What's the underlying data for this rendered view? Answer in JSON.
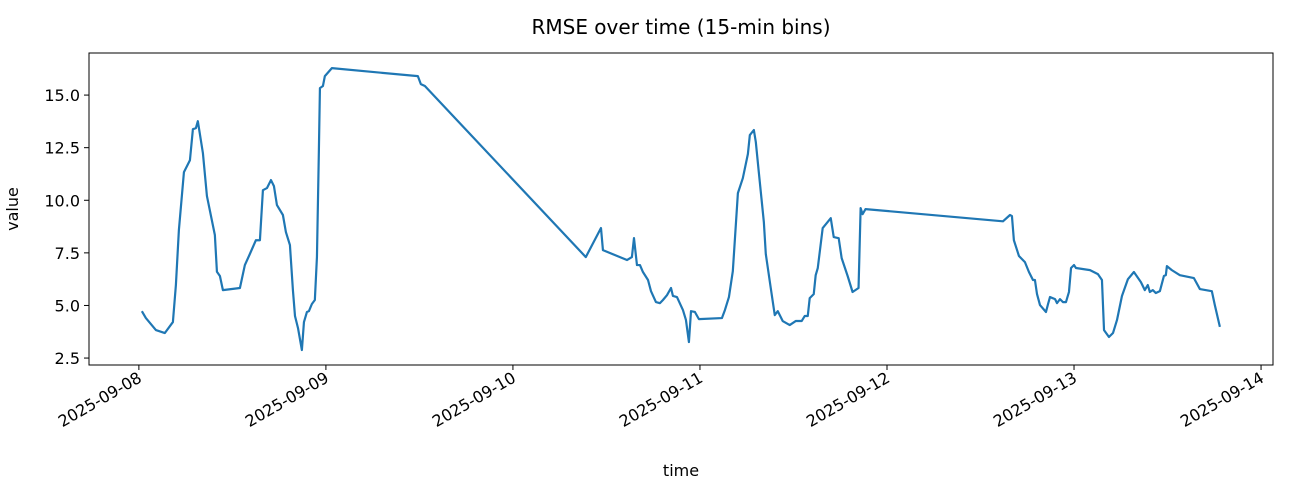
{
  "chart_data": {
    "type": "line",
    "title": "RMSE over time (15-min bins)",
    "x_label": "time",
    "y_label": "value",
    "color": "#1f77b4",
    "x": [
      "2025-09-08 00:23",
      "2025-09-08 00:54",
      "2025-09-08 02:11",
      "2025-09-08 03:20",
      "2025-09-08 04:22",
      "2025-09-08 04:45",
      "2025-09-08 05:08",
      "2025-09-08 05:47",
      "2025-09-08 06:33",
      "2025-09-08 06:56",
      "2025-09-08 07:19",
      "2025-09-08 07:34",
      "2025-09-08 08:13",
      "2025-09-08 08:44",
      "2025-09-08 09:45",
      "2025-09-08 10:01",
      "2025-09-08 10:24",
      "2025-09-08 10:47",
      "2025-09-08 12:58",
      "2025-09-08 13:36",
      "2025-09-08 14:14",
      "2025-09-08 15:01",
      "2025-09-08 15:32",
      "2025-09-08 15:55",
      "2025-09-08 16:26",
      "2025-09-08 16:57",
      "2025-09-08 17:20",
      "2025-09-08 17:43",
      "2025-09-08 18:29",
      "2025-09-08 18:52",
      "2025-09-08 19:23",
      "2025-09-08 19:46",
      "2025-09-08 20:02",
      "2025-09-08 20:25",
      "2025-09-08 20:55",
      "2025-09-08 21:11",
      "2025-09-08 21:34",
      "2025-09-08 21:49",
      "2025-09-08 22:12",
      "2025-09-08 22:35",
      "2025-09-08 22:51",
      "2025-09-08 23:06",
      "2025-09-08 23:14",
      "2025-09-08 23:37",
      "2025-09-08 23:52",
      "2025-09-09 00:46",
      "2025-09-09 11:48",
      "2025-09-09 12:11",
      "2025-09-09 12:42",
      "2025-09-10 09:21",
      "2025-09-10 11:18",
      "2025-09-10 11:33",
      "2025-09-10 14:38",
      "2025-09-10 15:16",
      "2025-09-10 15:32",
      "2025-09-10 15:55",
      "2025-09-10 16:18",
      "2025-09-10 16:41",
      "2025-09-10 17:20",
      "2025-09-10 17:43",
      "2025-09-10 18:21",
      "2025-09-10 18:52",
      "2025-09-10 19:15",
      "2025-09-10 19:46",
      "2025-09-10 20:17",
      "2025-09-10 20:32",
      "2025-09-10 21:03",
      "2025-09-10 21:49",
      "2025-09-10 22:12",
      "2025-09-10 22:35",
      "2025-09-10 22:51",
      "2025-09-10 23:21",
      "2025-09-10 23:52",
      "2025-09-11 02:49",
      "2025-09-11 03:12",
      "2025-09-11 03:43",
      "2025-09-11 04:13",
      "2025-09-11 04:52",
      "2025-09-11 05:30",
      "2025-09-11 06:09",
      "2025-09-11 06:24",
      "2025-09-11 06:55",
      "2025-09-11 07:10",
      "2025-09-11 07:33",
      "2025-09-11 08:12",
      "2025-09-11 08:27",
      "2025-09-11 09:05",
      "2025-09-11 09:36",
      "2025-09-11 09:59",
      "2025-09-11 10:37",
      "2025-09-11 11:31",
      "2025-09-11 12:17",
      "2025-09-11 13:03",
      "2025-09-11 13:27",
      "2025-09-11 13:50",
      "2025-09-11 14:05",
      "2025-09-11 14:36",
      "2025-09-11 14:51",
      "2025-09-11 15:07",
      "2025-09-11 15:45",
      "2025-09-11 16:47",
      "2025-09-11 17:10",
      "2025-09-11 17:48",
      "2025-09-11 18:11",
      "2025-09-11 18:57",
      "2025-09-11 19:35",
      "2025-09-11 20:21",
      "2025-09-11 20:37",
      "2025-09-11 20:52",
      "2025-09-11 21:15",
      "2025-09-12 14:53",
      "2025-09-12 15:47",
      "2025-09-12 16:02",
      "2025-09-12 16:17",
      "2025-09-12 16:56",
      "2025-09-12 17:42",
      "2025-09-12 18:13",
      "2025-09-12 18:44",
      "2025-09-12 18:59",
      "2025-09-12 19:15",
      "2025-09-12 19:38",
      "2025-09-12 20:24",
      "2025-09-12 20:40",
      "2025-09-12 20:55",
      "2025-09-12 21:34",
      "2025-09-12 21:49",
      "2025-09-12 22:12",
      "2025-09-12 22:35",
      "2025-09-12 22:58",
      "2025-09-12 23:21",
      "2025-09-12 23:37",
      "2025-09-13 00:00",
      "2025-09-13 00:15",
      "2025-09-13 02:03",
      "2025-09-13 03:04",
      "2025-09-13 03:35",
      "2025-09-13 03:51",
      "2025-09-13 04:29",
      "2025-09-13 05:00",
      "2025-09-13 05:31",
      "2025-09-13 06:09",
      "2025-09-13 06:55",
      "2025-09-13 07:41",
      "2025-09-13 08:35",
      "2025-09-13 09:05",
      "2025-09-13 09:28",
      "2025-09-13 09:44",
      "2025-09-13 10:07",
      "2025-09-13 10:30",
      "2025-09-13 11:01",
      "2025-09-13 11:32",
      "2025-09-13 11:47",
      "2025-09-13 11:55",
      "2025-09-13 12:33",
      "2025-09-13 13:35",
      "2025-09-13 15:23",
      "2025-09-13 16:09",
      "2025-09-13 17:41",
      "2025-09-13 18:04",
      "2025-09-13 18:43"
    ],
    "values": [
      4.73,
      4.4,
      3.83,
      3.69,
      4.21,
      5.97,
      8.58,
      11.34,
      11.9,
      13.38,
      13.43,
      13.76,
      12.24,
      10.2,
      8.35,
      6.6,
      6.4,
      5.73,
      5.83,
      6.92,
      7.44,
      8.1,
      8.1,
      10.48,
      10.58,
      10.96,
      10.67,
      9.77,
      9.3,
      8.49,
      7.87,
      5.73,
      4.5,
      3.93,
      2.88,
      4.21,
      4.69,
      4.73,
      5.07,
      5.26,
      7.3,
      12.39,
      15.33,
      15.43,
      15.9,
      16.28,
      15.9,
      15.52,
      15.43,
      7.3,
      8.68,
      7.63,
      7.16,
      7.3,
      8.2,
      6.92,
      6.92,
      6.59,
      6.21,
      5.68,
      5.16,
      5.11,
      5.26,
      5.49,
      5.83,
      5.45,
      5.4,
      4.78,
      4.31,
      3.26,
      4.73,
      4.69,
      4.35,
      4.4,
      4.78,
      5.4,
      6.63,
      10.34,
      11.05,
      12.2,
      13.1,
      13.34,
      12.77,
      11.34,
      8.96,
      7.44,
      5.83,
      4.54,
      4.73,
      4.26,
      4.07,
      4.26,
      4.26,
      4.5,
      4.5,
      5.35,
      5.54,
      6.44,
      6.78,
      8.68,
      9.15,
      8.25,
      8.2,
      7.25,
      6.4,
      5.64,
      5.83,
      9.63,
      9.34,
      9.58,
      9.0,
      9.3,
      9.25,
      8.1,
      7.35,
      7.06,
      6.59,
      6.21,
      6.21,
      5.54,
      5.02,
      4.69,
      5.07,
      5.4,
      5.3,
      5.11,
      5.3,
      5.16,
      5.16,
      5.64,
      6.78,
      6.92,
      6.78,
      6.68,
      6.49,
      6.21,
      3.83,
      3.5,
      3.69,
      4.31,
      5.45,
      6.25,
      6.59,
      6.11,
      5.73,
      5.97,
      5.64,
      5.73,
      5.59,
      5.68,
      6.4,
      6.44,
      6.87,
      6.68,
      6.44,
      6.3,
      5.78,
      5.68,
      5.02,
      3.98
    ],
    "xlim": [
      "2025-09-07 17:36",
      "2025-09-14 01:32"
    ],
    "xticks": [
      "2025-09-08",
      "2025-09-09",
      "2025-09-10",
      "2025-09-11",
      "2025-09-12",
      "2025-09-13",
      "2025-09-14"
    ],
    "ylim": [
      2.17,
      17.0
    ],
    "yticks": [
      2.5,
      {
        "value": 5,
        "label": "5.0"
      },
      7.5,
      {
        "value": 10,
        "label": "10.0"
      },
      12.5,
      {
        "value": 15,
        "label": "15.0"
      }
    ],
    "grid": false
  }
}
